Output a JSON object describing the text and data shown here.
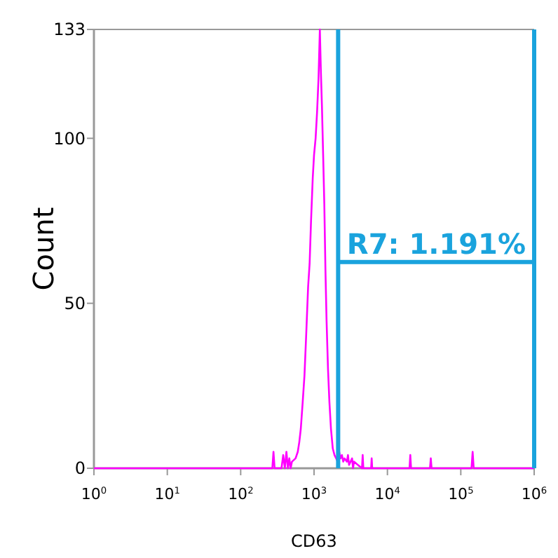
{
  "chart_data": {
    "type": "line",
    "xlabel": "CD63",
    "ylabel": "Count",
    "log": "x",
    "xlim": [
      1,
      1000000
    ],
    "ylim": [
      0,
      133
    ],
    "xticks": [
      {
        "value": 1,
        "label": "10$^{0}$"
      },
      {
        "value": 10,
        "label": "10$^{1}$"
      },
      {
        "value": 100,
        "label": "10$^{2}$"
      },
      {
        "value": 1000,
        "label": "10$^{3}$"
      },
      {
        "value": 10000,
        "label": "10$^{4}$"
      },
      {
        "value": 100000,
        "label": "10$^{5}$"
      },
      {
        "value": 1000000,
        "label": "10$^{6}$"
      }
    ],
    "yticks": [
      0,
      50,
      100,
      133
    ],
    "series": [
      {
        "color": "#ff00ff",
        "x": [
          1,
          270,
          280,
          290,
          360,
          380,
          400,
          420,
          440,
          460,
          480,
          500,
          560,
          600,
          630,
          660,
          700,
          740,
          780,
          830,
          870,
          910,
          960,
          1000,
          1050,
          1100,
          1150,
          1200,
          1240,
          1280,
          1330,
          1380,
          1430,
          1480,
          1550,
          1620,
          1700,
          1800,
          1900,
          2000,
          2100,
          2200,
          2300,
          2400,
          2500,
          2600,
          2800,
          2900,
          3000,
          3300,
          3400,
          3500,
          4500,
          4600,
          4700,
          6000,
          6100,
          6200,
          20000,
          20500,
          21000,
          38000,
          39000,
          40000,
          140000,
          145000,
          150000,
          1000000
        ],
        "values": [
          0,
          0,
          5,
          0,
          0,
          4,
          0,
          5,
          0,
          3,
          0,
          2,
          3,
          5,
          8,
          12,
          20,
          28,
          40,
          55,
          62,
          75,
          88,
          95,
          100,
          108,
          118,
          133,
          120,
          110,
          95,
          80,
          60,
          45,
          30,
          20,
          12,
          6,
          4,
          3,
          2,
          5,
          3,
          4,
          2,
          3,
          2,
          4,
          1,
          3,
          0,
          2,
          0,
          4,
          0,
          0,
          3,
          0,
          0,
          4,
          0,
          0,
          3,
          0,
          0,
          5,
          0,
          0
        ]
      }
    ],
    "annotations": [
      "R7: 1.191%"
    ],
    "ref_lines": [
      {
        "axis": "x",
        "value": 2130,
        "color": "#1aa3dd"
      },
      {
        "axis": "x",
        "value": 1000000,
        "color": "#1aa3dd"
      }
    ]
  }
}
